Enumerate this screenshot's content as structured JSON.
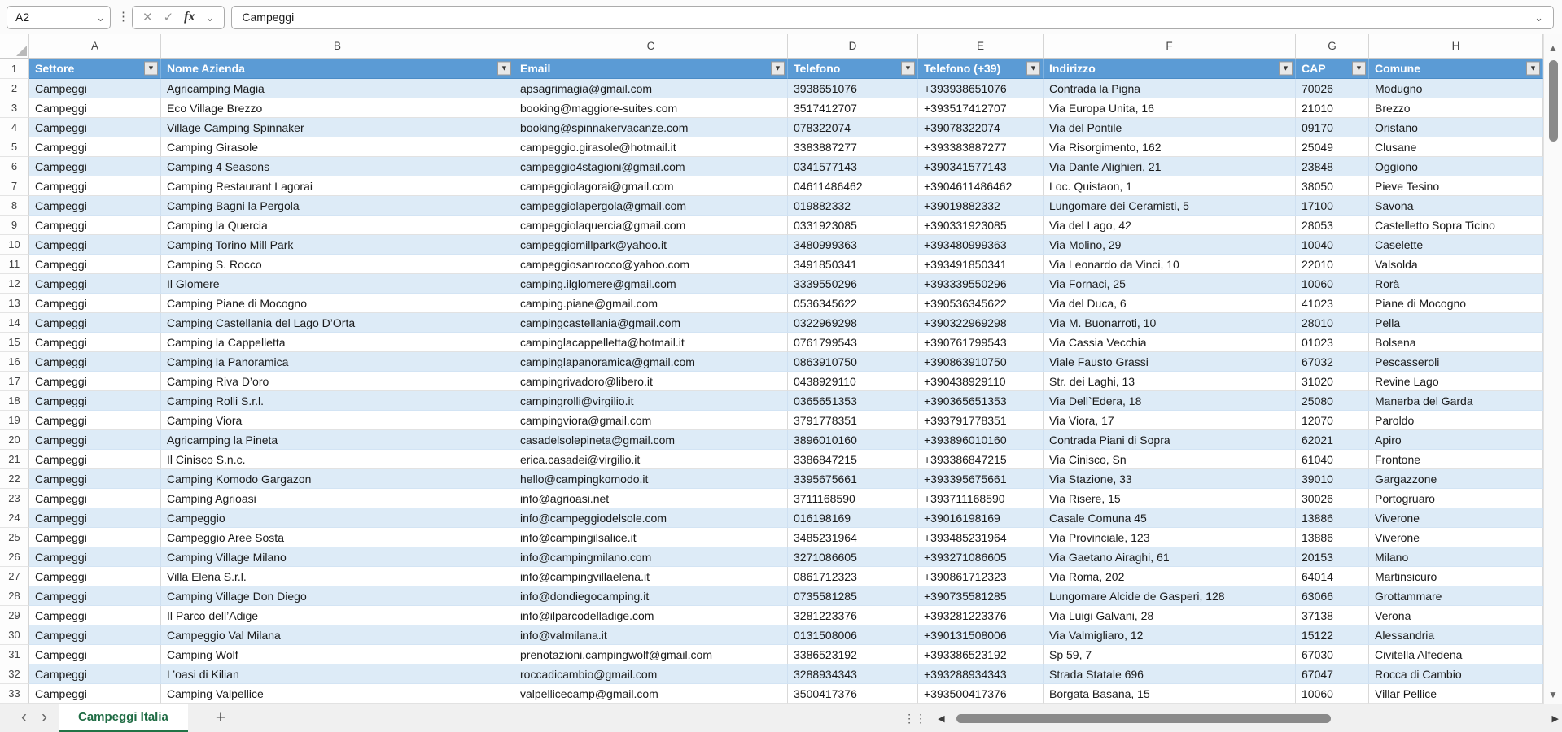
{
  "formula_bar": {
    "name_box": "A2",
    "formula": "Campeggi",
    "fx_label": "fx"
  },
  "icons": {
    "cancel": "✕",
    "confirm": "✓",
    "chevron_down": "⌄",
    "filter_arrow": "▼",
    "up_arrow": "▲",
    "down_arrow": "▼",
    "left_arrow": "◀",
    "right_arrow": "▶",
    "nav_left": "‹",
    "nav_right": "›",
    "dots_vertical": "⋮⋮",
    "add": "+"
  },
  "grid": {
    "column_letters": [
      "A",
      "B",
      "C",
      "D",
      "E",
      "F",
      "G",
      "H"
    ]
  },
  "table": {
    "headers": [
      "Settore",
      "Nome Azienda",
      "Email",
      "Telefono",
      "Telefono (+39)",
      "Indirizzo",
      "CAP",
      "Comune"
    ],
    "rows": [
      [
        "Campeggi",
        "Agricamping Magia",
        "apsagrimagia@gmail.com",
        "3938651076",
        "+393938651076",
        "Contrada la Pigna",
        "70026",
        "Modugno"
      ],
      [
        "Campeggi",
        "Eco Village Brezzo",
        "booking@maggiore-suites.com",
        "3517412707",
        "+393517412707",
        "Via Europa Unita, 16",
        "21010",
        "Brezzo"
      ],
      [
        "Campeggi",
        "Village Camping Spinnaker",
        "booking@spinnakervacanze.com",
        "078322074",
        "+39078322074",
        "Via del Pontile",
        "09170",
        "Oristano"
      ],
      [
        "Campeggi",
        "Camping Girasole",
        "campeggio.girasole@hotmail.it",
        "3383887277",
        "+393383887277",
        "Via Risorgimento, 162",
        "25049",
        "Clusane"
      ],
      [
        "Campeggi",
        "Camping 4 Seasons",
        "campeggio4stagioni@gmail.com",
        "0341577143",
        "+390341577143",
        "Via Dante Alighieri, 21",
        "23848",
        "Oggiono"
      ],
      [
        "Campeggi",
        "Camping Restaurant Lagorai",
        "campeggiolagorai@gmail.com",
        "04611486462",
        "+3904611486462",
        "Loc. Quistaon, 1",
        "38050",
        "Pieve Tesino"
      ],
      [
        "Campeggi",
        "Camping Bagni la Pergola",
        "campeggiolapergola@gmail.com",
        "019882332",
        "+39019882332",
        "Lungomare dei Ceramisti, 5",
        "17100",
        "Savona"
      ],
      [
        "Campeggi",
        "Camping la Quercia",
        "campeggiolaquercia@gmail.com",
        "0331923085",
        "+390331923085",
        "Via del Lago, 42",
        "28053",
        "Castelletto Sopra Ticino"
      ],
      [
        "Campeggi",
        "Camping Torino Mill Park",
        "campeggiomillpark@yahoo.it",
        "3480999363",
        "+393480999363",
        "Via Molino, 29",
        "10040",
        "Caselette"
      ],
      [
        "Campeggi",
        "Camping S. Rocco",
        "campeggiosanrocco@yahoo.com",
        "3491850341",
        "+393491850341",
        "Via Leonardo da Vinci, 10",
        "22010",
        "Valsolda"
      ],
      [
        "Campeggi",
        "Il Glomere",
        "camping.ilglomere@gmail.com",
        "3339550296",
        "+393339550296",
        "Via Fornaci, 25",
        "10060",
        "Rorà"
      ],
      [
        "Campeggi",
        "Camping Piane di Mocogno",
        "camping.piane@gmail.com",
        "0536345622",
        "+390536345622",
        "Via del Duca, 6",
        "41023",
        "Piane di Mocogno"
      ],
      [
        "Campeggi",
        "Camping Castellania del Lago D’Orta",
        "campingcastellania@gmail.com",
        "0322969298",
        "+390322969298",
        "Via M. Buonarroti, 10",
        "28010",
        "Pella"
      ],
      [
        "Campeggi",
        "Camping la Cappelletta",
        "campinglacappelletta@hotmail.it",
        "0761799543",
        "+390761799543",
        "Via Cassia Vecchia",
        "01023",
        "Bolsena"
      ],
      [
        "Campeggi",
        "Camping la Panoramica",
        "campinglapanoramica@gmail.com",
        "0863910750",
        "+390863910750",
        "Viale Fausto Grassi",
        "67032",
        "Pescasseroli"
      ],
      [
        "Campeggi",
        "Camping Riva D’oro",
        "campingrivadoro@libero.it",
        "0438929110",
        "+390438929110",
        "Str. dei Laghi, 13",
        "31020",
        "Revine Lago"
      ],
      [
        "Campeggi",
        "Camping Rolli S.r.l.",
        "campingrolli@virgilio.it",
        "0365651353",
        "+390365651353",
        "Via Dell`Edera, 18",
        "25080",
        "Manerba del Garda"
      ],
      [
        "Campeggi",
        "Camping Viora",
        "campingviora@gmail.com",
        "3791778351",
        "+393791778351",
        "Via Viora, 17",
        "12070",
        "Paroldo"
      ],
      [
        "Campeggi",
        "Agricamping la Pineta",
        "casadelsolepineta@gmail.com",
        "3896010160",
        "+393896010160",
        "Contrada Piani di Sopra",
        "62021",
        "Apiro"
      ],
      [
        "Campeggi",
        "Il Cinisco S.n.c.",
        "erica.casadei@virgilio.it",
        "3386847215",
        "+393386847215",
        "Via Cinisco, Sn",
        "61040",
        "Frontone"
      ],
      [
        "Campeggi",
        "Camping Komodo Gargazon",
        "hello@campingkomodo.it",
        "3395675661",
        "+393395675661",
        "Via Stazione, 33",
        "39010",
        "Gargazzone"
      ],
      [
        "Campeggi",
        "Camping Agrioasi",
        "info@agrioasi.net",
        "3711168590",
        "+393711168590",
        "Via Risere, 15",
        "30026",
        "Portogruaro"
      ],
      [
        "Campeggi",
        "Campeggio",
        "info@campeggiodelsole.com",
        "016198169",
        "+39016198169",
        "Casale Comuna 45",
        "13886",
        "Viverone"
      ],
      [
        "Campeggi",
        "Campeggio Aree Sosta",
        "info@campingilsalice.it",
        "3485231964",
        "+393485231964",
        "Via Provinciale, 123",
        "13886",
        "Viverone"
      ],
      [
        "Campeggi",
        "Camping Village Milano",
        "info@campingmilano.com",
        "3271086605",
        "+393271086605",
        "Via Gaetano Airaghi, 61",
        "20153",
        "Milano"
      ],
      [
        "Campeggi",
        "Villa Elena S.r.l.",
        "info@campingvillaelena.it",
        "0861712323",
        "+390861712323",
        "Via Roma, 202",
        "64014",
        "Martinsicuro"
      ],
      [
        "Campeggi",
        "Camping Village Don Diego",
        "info@dondiegocamping.it",
        "0735581285",
        "+390735581285",
        "Lungomare Alcide de Gasperi, 128",
        "63066",
        "Grottammare"
      ],
      [
        "Campeggi",
        "Il Parco dell’Adige",
        "info@ilparcodelladige.com",
        "3281223376",
        "+393281223376",
        "Via Luigi Galvani, 28",
        "37138",
        "Verona"
      ],
      [
        "Campeggi",
        "Campeggio Val Milana",
        "info@valmilana.it",
        "0131508006",
        "+390131508006",
        "Via Valmigliaro, 12",
        "15122",
        "Alessandria"
      ],
      [
        "Campeggi",
        "Camping Wolf",
        "prenotazioni.campingwolf@gmail.com",
        "3386523192",
        "+393386523192",
        "Sp 59, 7",
        "67030",
        "Civitella Alfedena"
      ],
      [
        "Campeggi",
        "L’oasi di Kilian",
        "roccadicambio@gmail.com",
        "3288934343",
        "+393288934343",
        "Strada Statale 696",
        "67047",
        "Rocca di Cambio"
      ],
      [
        "Campeggi",
        "Camping Valpellice",
        "valpellicecamp@gmail.com",
        "3500417376",
        "+393500417376",
        "Borgata Basana, 15",
        "10060",
        "Villar Pellice"
      ]
    ],
    "first_data_row_number": 2
  },
  "sheet_tabs": {
    "tabs": [
      {
        "label": "Campeggi Italia",
        "active": true
      }
    ]
  },
  "colors": {
    "header_fill": "#5B9BD5",
    "band_fill": "#DDEBF7",
    "active_tab_green": "#217346"
  }
}
